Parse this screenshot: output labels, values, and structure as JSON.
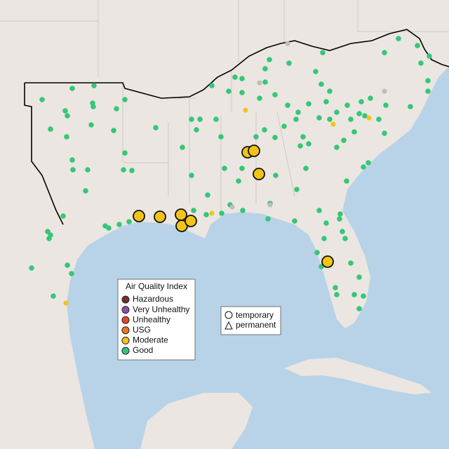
{
  "legend": {
    "title": "Air Quality Index",
    "items": [
      {
        "label": "Hazardous",
        "color": "#7a2e2a"
      },
      {
        "label": "Very Unhealthy",
        "color": "#8e4fa3"
      },
      {
        "label": "Unhealthy",
        "color": "#e8452c"
      },
      {
        "label": "USG",
        "color": "#e8781e"
      },
      {
        "label": "Moderate",
        "color": "#f3c317"
      },
      {
        "label": "Good",
        "color": "#35c679"
      }
    ]
  },
  "shape_legend": {
    "items": [
      "temporary",
      "permanent"
    ]
  }
}
